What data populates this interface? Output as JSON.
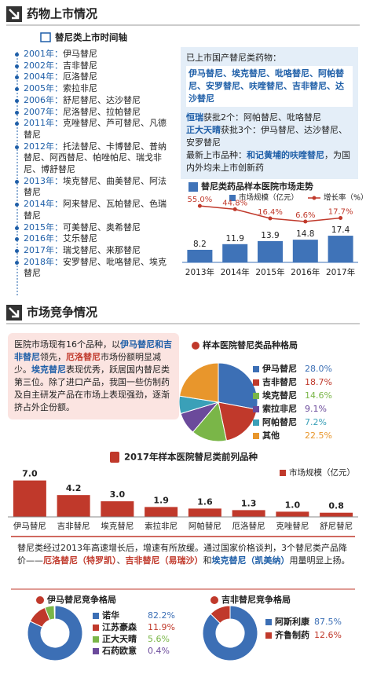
{
  "section1": {
    "title": "药物上市情况"
  },
  "timeline": {
    "title": "替尼类上市时间轴",
    "entries": [
      {
        "year": "2001年：",
        "drugs": "伊马替尼"
      },
      {
        "year": "2002年：",
        "drugs": "吉非替尼"
      },
      {
        "year": "2004年：",
        "drugs": "厄洛替尼"
      },
      {
        "year": "2005年：",
        "drugs": "索拉非尼"
      },
      {
        "year": "2006年：",
        "drugs": "舒尼替尼、达沙替尼"
      },
      {
        "year": "2007年：",
        "drugs": "尼洛替尼、拉帕替尼"
      },
      {
        "year": "2011年：",
        "drugs": "克唑替尼、芦可替尼、凡德替尼"
      },
      {
        "year": "2012年：",
        "drugs": "托法替尼、卡博替尼、普纳替尼、阿西替尼、帕唑帕尼、瑞戈非尼、博舒替尼"
      },
      {
        "year": "2013年：",
        "drugs": "埃克替尼、曲美替尼、阿法替尼"
      },
      {
        "year": "2014年：",
        "drugs": "阿来替尼、瓦帕替尼、色瑞替尼"
      },
      {
        "year": "2015年：",
        "drugs": "可美替尼、奥希替尼"
      },
      {
        "year": "2016年：",
        "drugs": "艾乐替尼"
      },
      {
        "year": "2017年：",
        "drugs": "瑞戈替尼、来那替尼"
      },
      {
        "year": "2018年：",
        "drugs": "安罗替尼、吡咯替尼、埃克替尼"
      }
    ]
  },
  "domestic": {
    "heading": "已上市国产替尼类药物：",
    "drugs": "伊马替尼、埃克替尼、吡咯替尼、阿帕替尼、安罗替尼、呋喹替尼、吉非替尼、达沙替尼",
    "notes": [
      [
        {
          "text": "恒瑞",
          "color": "#1f5fa8"
        },
        {
          "text": "获批2个：阿帕替尼、吡咯替尼"
        }
      ],
      [
        {
          "text": "正大天晴",
          "color": "#1f5fa8"
        },
        {
          "text": "获批3个：伊马替尼、达沙替尼、安罗替尼"
        }
      ],
      [
        {
          "text": "最新上市品种："
        },
        {
          "text": "和记黄埔的呋喹替尼",
          "color": "#1f5fa8"
        },
        {
          "text": "，为国内外均未上市创新药"
        }
      ]
    ]
  },
  "section2": {
    "title": "市场竞争情况"
  },
  "competition": [
    {
      "text": "医院市场现有16个品种，以"
    },
    {
      "text": "伊马替尼和吉非替尼",
      "color": "#1f5fa8"
    },
    {
      "text": "领先，"
    },
    {
      "text": "厄洛替尼",
      "color": "#c0392b"
    },
    {
      "text": "市场份额明显减少。"
    },
    {
      "text": "埃克替尼",
      "color": "#1f5fa8"
    },
    {
      "text": "表现优秀，跃居国内替尼类第三位。除了进口产品，我国一些仿制药及自主研发产品在市场上表现强劲，逐渐挤占外企份额。"
    }
  ],
  "summary": [
    {
      "text": "替尼类经过2013年高速增长后，增速有所放缓。通过国家价格谈判，3个替尼类产品降价——"
    },
    {
      "text": "厄洛替尼（特罗凯）",
      "color": "#c0392b"
    },
    {
      "text": "、"
    },
    {
      "text": "吉非替尼（易瑞沙）",
      "color": "#c0392b"
    },
    {
      "text": "和"
    },
    {
      "text": "埃克替尼（凯美纳）",
      "color": "#1f5fa8"
    },
    {
      "text": "用量明显上扬。"
    }
  ],
  "chart_data": [
    {
      "type": "combo",
      "title": "替尼类药品样本医院市场走势",
      "categories": [
        "2013年",
        "2014年",
        "2015年",
        "2016年",
        "2017年"
      ],
      "series": [
        {
          "name": "市场规模（亿元）",
          "color": "#3f73b8",
          "values": [
            8.2,
            11.9,
            13.9,
            14.8,
            17.4
          ]
        },
        {
          "name": "增长率（%）",
          "color": "#c0392b",
          "axis": "y2",
          "values": [
            55.0,
            44.8,
            16.4,
            6.6,
            17.7
          ],
          "value_labels": [
            "55.0%",
            "44.8%",
            "16.4%",
            "6.6%",
            "17.7%"
          ]
        }
      ],
      "ylim": [
        0,
        40
      ],
      "y2lim": [
        -120,
        70
      ]
    },
    {
      "type": "pie",
      "title": "样本医院替尼类品种格局",
      "categories": [
        "伊马替尼",
        "吉非替尼",
        "埃克替尼",
        "索拉非尼",
        "阿帕替尼",
        "其他"
      ],
      "values": [
        28.0,
        18.7,
        14.6,
        9.1,
        7.2,
        22.5
      ],
      "value_labels": [
        "28.0%",
        "18.7%",
        "14.6%",
        "9.1%",
        "7.2%",
        "22.5%"
      ],
      "colors": [
        "#3c6fb5",
        "#c0392b",
        "#7ab648",
        "#6b4a9b",
        "#3aa0b8",
        "#e8962c"
      ]
    },
    {
      "type": "bar",
      "title": "2017年样本医院替尼类前列品种",
      "categories": [
        "伊马替尼",
        "吉非替尼",
        "埃克替尼",
        "索拉非尼",
        "阿帕替尼",
        "厄洛替尼",
        "克唑替尼",
        "舒尼替尼"
      ],
      "series": [
        {
          "name": "市场规模（亿元）",
          "color": "#c0392b",
          "values": [
            7.0,
            4.2,
            3.0,
            1.9,
            1.6,
            1.3,
            1.0,
            0.8
          ],
          "value_labels": [
            "7.0",
            "4.2",
            "3.0",
            "1.9",
            "1.6",
            "1.3",
            "1.0",
            "0.8"
          ]
        }
      ],
      "ylim": [
        0,
        8
      ]
    },
    {
      "type": "donut",
      "title": "伊马替尼竞争格局",
      "categories": [
        "诺华",
        "江苏豪森",
        "正大天晴",
        "石药欧意"
      ],
      "values": [
        82.2,
        11.9,
        5.6,
        0.4
      ],
      "value_labels": [
        "82.2%",
        "11.9%",
        "5.6%",
        "0.4%"
      ],
      "colors": [
        "#3c6fb5",
        "#c0392b",
        "#7ab648",
        "#6b4a9b"
      ]
    },
    {
      "type": "donut",
      "title": "吉非替尼竞争格局",
      "categories": [
        "阿斯利康",
        "齐鲁制药"
      ],
      "values": [
        87.5,
        12.6
      ],
      "value_labels": [
        "87.5%",
        "12.6%"
      ],
      "colors": [
        "#3c6fb5",
        "#c0392b"
      ]
    }
  ]
}
